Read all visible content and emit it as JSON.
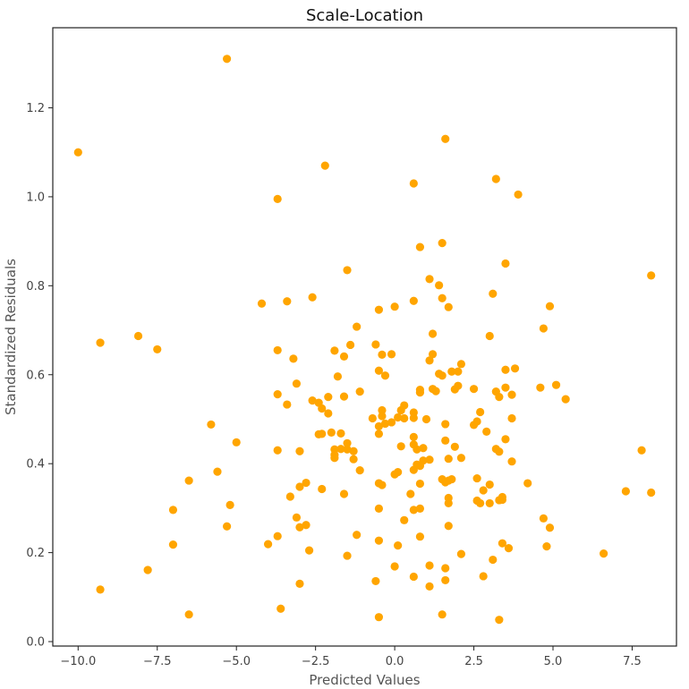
{
  "chart_data": {
    "type": "scatter",
    "title": "Scale-Location",
    "xlabel": "Predicted Values",
    "ylabel": "Standardized Residuals",
    "xlim": [
      -10.8,
      8.9
    ],
    "ylim": [
      -0.01,
      1.38
    ],
    "x_ticks": [
      "−10.0",
      "−7.5",
      "−5.0",
      "−2.5",
      "0.0",
      "2.5",
      "5.0",
      "7.5"
    ],
    "y_ticks": [
      "0.0",
      "0.2",
      "0.4",
      "0.6",
      "0.8",
      "1.0",
      "1.2"
    ],
    "x_tick_values": [
      -10.0,
      -7.5,
      -5.0,
      -2.5,
      0.0,
      2.5,
      5.0,
      7.5
    ],
    "y_tick_values": [
      0.0,
      0.2,
      0.4,
      0.6,
      0.8,
      1.0,
      1.2
    ],
    "grid": false,
    "marker_color": "#FFA500",
    "series": [
      {
        "name": "",
        "points": [
          [
            -5.3,
            1.31
          ],
          [
            -10.0,
            1.1
          ],
          [
            1.6,
            1.13
          ],
          [
            -2.2,
            1.07
          ],
          [
            0.6,
            1.03
          ],
          [
            3.2,
            1.04
          ],
          [
            -3.7,
            0.995
          ],
          [
            3.9,
            1.005
          ],
          [
            8.1,
            0.823
          ],
          [
            -9.3,
            0.672
          ],
          [
            -8.1,
            0.687
          ],
          [
            -7.5,
            0.657
          ],
          [
            -1.5,
            0.835
          ],
          [
            1.1,
            0.815
          ],
          [
            1.4,
            0.801
          ],
          [
            -4.2,
            0.76
          ],
          [
            -3.4,
            0.765
          ],
          [
            -2.6,
            0.774
          ],
          [
            0.0,
            0.753
          ],
          [
            -0.5,
            0.746
          ],
          [
            0.6,
            0.766
          ],
          [
            1.5,
            0.772
          ],
          [
            1.7,
            0.752
          ],
          [
            3.1,
            0.782
          ],
          [
            3.5,
            0.85
          ],
          [
            4.9,
            0.754
          ],
          [
            4.7,
            0.704
          ],
          [
            0.8,
            0.887
          ],
          [
            1.5,
            0.896
          ],
          [
            -1.2,
            0.708
          ],
          [
            -0.6,
            0.668
          ],
          [
            -1.4,
            0.667
          ],
          [
            -1.9,
            0.654
          ],
          [
            -3.7,
            0.655
          ],
          [
            -3.2,
            0.636
          ],
          [
            -1.6,
            0.641
          ],
          [
            -0.4,
            0.645
          ],
          [
            -0.1,
            0.646
          ],
          [
            1.2,
            0.646
          ],
          [
            1.2,
            0.692
          ],
          [
            3.0,
            0.687
          ],
          [
            -0.5,
            0.609
          ],
          [
            -0.3,
            0.598
          ],
          [
            1.1,
            0.632
          ],
          [
            1.4,
            0.602
          ],
          [
            1.5,
            0.598
          ],
          [
            1.8,
            0.607
          ],
          [
            2.0,
            0.607
          ],
          [
            2.1,
            0.624
          ],
          [
            3.5,
            0.611
          ],
          [
            3.8,
            0.614
          ],
          [
            -1.8,
            0.596
          ],
          [
            -3.1,
            0.58
          ],
          [
            -3.7,
            0.556
          ],
          [
            -3.4,
            0.533
          ],
          [
            -2.6,
            0.542
          ],
          [
            -2.4,
            0.537
          ],
          [
            -2.3,
            0.524
          ],
          [
            -2.1,
            0.513
          ],
          [
            -2.1,
            0.55
          ],
          [
            -1.6,
            0.551
          ],
          [
            -1.1,
            0.562
          ],
          [
            0.3,
            0.531
          ],
          [
            0.2,
            0.52
          ],
          [
            0.8,
            0.566
          ],
          [
            0.8,
            0.56
          ],
          [
            1.2,
            0.568
          ],
          [
            1.3,
            0.563
          ],
          [
            1.9,
            0.567
          ],
          [
            2.0,
            0.575
          ],
          [
            2.5,
            0.568
          ],
          [
            3.2,
            0.562
          ],
          [
            3.3,
            0.55
          ],
          [
            3.5,
            0.571
          ],
          [
            3.7,
            0.555
          ],
          [
            4.6,
            0.571
          ],
          [
            5.1,
            0.577
          ],
          [
            5.4,
            0.545
          ],
          [
            -5.8,
            0.488
          ],
          [
            -5.0,
            0.448
          ],
          [
            -3.7,
            0.43
          ],
          [
            -2.4,
            0.466
          ],
          [
            -2.3,
            0.467
          ],
          [
            -2.0,
            0.47
          ],
          [
            -1.7,
            0.468
          ],
          [
            -1.9,
            0.432
          ],
          [
            -1.9,
            0.42
          ],
          [
            -1.9,
            0.413
          ],
          [
            -1.7,
            0.433
          ],
          [
            -1.5,
            0.432
          ],
          [
            -1.5,
            0.446
          ],
          [
            -1.3,
            0.428
          ],
          [
            -1.3,
            0.41
          ],
          [
            -1.1,
            0.385
          ],
          [
            -0.7,
            0.502
          ],
          [
            -0.4,
            0.52
          ],
          [
            -0.4,
            0.507
          ],
          [
            -0.3,
            0.49
          ],
          [
            -0.1,
            0.493
          ],
          [
            0.1,
            0.504
          ],
          [
            0.3,
            0.502
          ],
          [
            0.6,
            0.515
          ],
          [
            0.6,
            0.503
          ],
          [
            1.0,
            0.5
          ],
          [
            1.6,
            0.489
          ],
          [
            1.6,
            0.452
          ],
          [
            1.9,
            0.438
          ],
          [
            1.7,
            0.411
          ],
          [
            2.1,
            0.413
          ],
          [
            2.5,
            0.487
          ],
          [
            2.6,
            0.495
          ],
          [
            2.7,
            0.516
          ],
          [
            2.9,
            0.472
          ],
          [
            3.2,
            0.433
          ],
          [
            3.5,
            0.455
          ],
          [
            3.7,
            0.502
          ],
          [
            3.3,
            0.427
          ],
          [
            3.7,
            0.405
          ],
          [
            -0.5,
            0.467
          ],
          [
            -0.5,
            0.484
          ],
          [
            0.2,
            0.439
          ],
          [
            0.6,
            0.46
          ],
          [
            0.6,
            0.443
          ],
          [
            0.7,
            0.432
          ],
          [
            0.9,
            0.435
          ],
          [
            0.6,
            0.386
          ],
          [
            0.7,
            0.398
          ],
          [
            0.8,
            0.395
          ],
          [
            0.9,
            0.407
          ],
          [
            1.1,
            0.409
          ],
          [
            -5.6,
            0.382
          ],
          [
            -6.5,
            0.362
          ],
          [
            -3.0,
            0.428
          ],
          [
            -3.3,
            0.326
          ],
          [
            -3.0,
            0.348
          ],
          [
            -2.8,
            0.357
          ],
          [
            -2.3,
            0.343
          ],
          [
            -1.6,
            0.332
          ],
          [
            -0.5,
            0.356
          ],
          [
            -0.4,
            0.352
          ],
          [
            0.0,
            0.376
          ],
          [
            0.1,
            0.381
          ],
          [
            0.5,
            0.332
          ],
          [
            0.6,
            0.296
          ],
          [
            0.8,
            0.299
          ],
          [
            0.8,
            0.355
          ],
          [
            1.5,
            0.365
          ],
          [
            1.6,
            0.358
          ],
          [
            1.7,
            0.362
          ],
          [
            1.8,
            0.365
          ],
          [
            1.7,
            0.323
          ],
          [
            1.7,
            0.311
          ],
          [
            2.6,
            0.367
          ],
          [
            2.6,
            0.317
          ],
          [
            2.7,
            0.311
          ],
          [
            2.8,
            0.34
          ],
          [
            3.0,
            0.353
          ],
          [
            3.0,
            0.311
          ],
          [
            3.3,
            0.318
          ],
          [
            3.4,
            0.325
          ],
          [
            3.4,
            0.319
          ],
          [
            4.2,
            0.356
          ],
          [
            7.3,
            0.338
          ],
          [
            7.8,
            0.43
          ],
          [
            8.1,
            0.335
          ],
          [
            -7.0,
            0.296
          ],
          [
            -5.2,
            0.307
          ],
          [
            -5.3,
            0.259
          ],
          [
            -3.1,
            0.279
          ],
          [
            -3.0,
            0.257
          ],
          [
            -2.8,
            0.262
          ],
          [
            -0.5,
            0.299
          ],
          [
            0.3,
            0.273
          ],
          [
            1.7,
            0.26
          ],
          [
            -7.0,
            0.218
          ],
          [
            -4.0,
            0.219
          ],
          [
            -3.7,
            0.237
          ],
          [
            -2.7,
            0.205
          ],
          [
            -1.2,
            0.24
          ],
          [
            -0.5,
            0.227
          ],
          [
            0.1,
            0.216
          ],
          [
            0.8,
            0.236
          ],
          [
            2.1,
            0.197
          ],
          [
            3.1,
            0.184
          ],
          [
            3.4,
            0.221
          ],
          [
            3.6,
            0.21
          ],
          [
            4.7,
            0.277
          ],
          [
            4.9,
            0.256
          ],
          [
            4.8,
            0.214
          ],
          [
            6.6,
            0.198
          ],
          [
            -7.8,
            0.161
          ],
          [
            -9.3,
            0.117
          ],
          [
            -3.0,
            0.13
          ],
          [
            -1.5,
            0.193
          ],
          [
            -0.6,
            0.136
          ],
          [
            0.0,
            0.169
          ],
          [
            0.6,
            0.146
          ],
          [
            1.1,
            0.171
          ],
          [
            1.1,
            0.124
          ],
          [
            1.6,
            0.165
          ],
          [
            1.6,
            0.138
          ],
          [
            2.8,
            0.147
          ],
          [
            -6.5,
            0.061
          ],
          [
            -3.6,
            0.074
          ],
          [
            -0.5,
            0.055
          ],
          [
            1.5,
            0.061
          ],
          [
            3.3,
            0.049
          ]
        ]
      }
    ]
  }
}
